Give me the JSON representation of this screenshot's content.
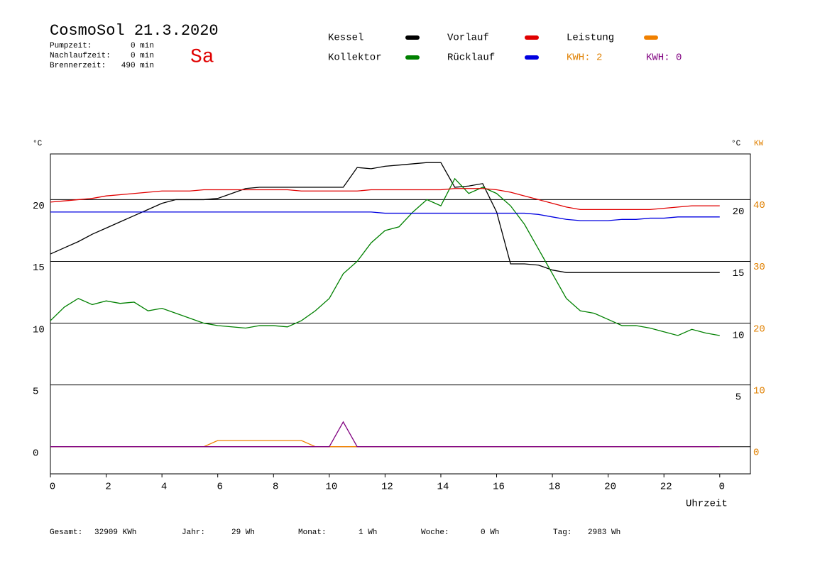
{
  "header": {
    "title": "CosmoSol 21.3.2020",
    "day": "Sa",
    "stats": [
      {
        "label": "Pumpzeit:",
        "value": "0 min"
      },
      {
        "label": "Nachlaufzeit:",
        "value": "0 min"
      },
      {
        "label": "Brennerzeit:",
        "value": "490 min"
      }
    ]
  },
  "footer": [
    {
      "label": "Gesamt:",
      "value": "32909 KWh"
    },
    {
      "label": "Jahr:",
      "value": "29 Wh"
    },
    {
      "label": "Monat:",
      "value": "1 Wh"
    },
    {
      "label": "Woche:",
      "value": "0 Wh"
    },
    {
      "label": "Tag:",
      "value": "2983 Wh"
    }
  ],
  "chart_data": {
    "type": "line",
    "y_unit": "°C",
    "y2_unit_left": "°C",
    "y2_unit": "KW",
    "xlabel": "Uhrzeit",
    "kwh_label": {
      "text": "KWH: 2",
      "color": "#e08000"
    },
    "xlim": [
      0,
      25.1
    ],
    "xticks": [
      0,
      2,
      4,
      6,
      8,
      10,
      12,
      14,
      16,
      18,
      20,
      22,
      {
        "value": 24,
        "label": "0"
      }
    ],
    "ylim": [
      -2.2,
      23.7
    ],
    "yticks": [
      0,
      5,
      10,
      15,
      20
    ],
    "inner_yticks": [
      5,
      10,
      15,
      20
    ],
    "y2lim": [
      -4.4,
      47.4
    ],
    "y2ticks": [
      0,
      10,
      20,
      30,
      40
    ],
    "grid": true,
    "x": [
      0,
      0.5,
      1,
      1.5,
      2,
      2.5,
      3,
      3.5,
      4,
      4.5,
      5,
      5.5,
      6,
      6.5,
      7,
      7.5,
      8,
      8.5,
      9,
      9.5,
      10,
      10.5,
      11,
      11.5,
      12,
      12.5,
      13,
      13.5,
      14,
      14.5,
      15,
      15.5,
      16,
      16.5,
      17,
      17.5,
      18,
      18.5,
      19,
      19.5,
      20,
      20.5,
      21,
      21.5,
      22,
      22.5,
      23,
      23.5,
      24
    ],
    "series": [
      {
        "name": "Kessel",
        "color": "#000000",
        "values": [
          15.6,
          16.1,
          16.6,
          17.2,
          17.7,
          18.2,
          18.7,
          19.2,
          19.7,
          20.0,
          20.0,
          20.0,
          20.1,
          20.5,
          20.9,
          21.0,
          21.0,
          21.0,
          21.0,
          21.0,
          21.0,
          21.0,
          22.6,
          22.5,
          22.7,
          22.8,
          22.9,
          23.0,
          23.0,
          21.0,
          21.1,
          21.3,
          19.0,
          14.8,
          14.8,
          14.7,
          14.3,
          14.1,
          14.1,
          14.1,
          14.1,
          14.1,
          14.1,
          14.1,
          14.1,
          14.1,
          14.1,
          14.1,
          14.1
        ]
      },
      {
        "name": "Kollektor",
        "color": "#008000",
        "values": [
          10.2,
          11.3,
          12.0,
          11.5,
          11.8,
          11.6,
          11.7,
          11.0,
          11.2,
          10.8,
          10.4,
          10.0,
          9.8,
          9.7,
          9.6,
          9.8,
          9.8,
          9.7,
          10.2,
          11.0,
          12.0,
          14.0,
          15.0,
          16.5,
          17.5,
          17.8,
          19.0,
          20.0,
          19.5,
          21.7,
          20.5,
          21.0,
          20.5,
          19.5,
          18.0,
          16.0,
          14.0,
          12.0,
          11.0,
          10.8,
          10.3,
          9.8,
          9.8,
          9.6,
          9.3,
          9.0,
          9.5,
          9.2,
          9.0
        ]
      },
      {
        "name": "Vorlauf",
        "color": "#e00000",
        "values": [
          19.8,
          19.9,
          20.0,
          20.1,
          20.3,
          20.4,
          20.5,
          20.6,
          20.7,
          20.7,
          20.7,
          20.8,
          20.8,
          20.8,
          20.8,
          20.8,
          20.8,
          20.8,
          20.7,
          20.7,
          20.7,
          20.7,
          20.7,
          20.8,
          20.8,
          20.8,
          20.8,
          20.8,
          20.8,
          20.9,
          20.9,
          20.9,
          20.8,
          20.6,
          20.3,
          20.0,
          19.7,
          19.4,
          19.2,
          19.2,
          19.2,
          19.2,
          19.2,
          19.2,
          19.3,
          19.4,
          19.5,
          19.5,
          19.5
        ]
      },
      {
        "name": "Rücklauf",
        "color": "#0000e0",
        "values": [
          19.0,
          19.0,
          19.0,
          19.0,
          19.0,
          19.0,
          19.0,
          19.0,
          19.0,
          19.0,
          19.0,
          19.0,
          19.0,
          19.0,
          19.0,
          19.0,
          19.0,
          19.0,
          19.0,
          19.0,
          19.0,
          19.0,
          19.0,
          19.0,
          18.9,
          18.9,
          18.9,
          18.9,
          18.9,
          18.9,
          18.9,
          18.9,
          18.9,
          18.9,
          18.9,
          18.8,
          18.6,
          18.4,
          18.3,
          18.3,
          18.3,
          18.4,
          18.4,
          18.5,
          18.5,
          18.6,
          18.6,
          18.6,
          18.6
        ]
      },
      {
        "name": "Leistung",
        "color": "#f08000",
        "axis": "y2",
        "values": [
          0,
          0,
          0,
          0,
          0,
          0,
          0,
          0,
          0,
          0,
          0,
          0,
          1,
          1,
          1,
          1,
          1,
          1,
          1,
          0,
          0,
          0,
          0,
          0,
          0,
          0,
          0,
          0,
          0,
          0,
          0,
          0,
          0,
          0,
          0,
          0,
          0,
          0,
          0,
          0,
          0,
          0,
          0,
          0,
          0,
          0,
          0,
          0,
          0
        ]
      },
      {
        "name": "KWH: 0",
        "color": "#800080",
        "axis": "y2",
        "legend_marker": false,
        "values": [
          0,
          0,
          0,
          0,
          0,
          0,
          0,
          0,
          0,
          0,
          0,
          0,
          0,
          0,
          0,
          0,
          0,
          0,
          0,
          0,
          0,
          4,
          0,
          0,
          0,
          0,
          0,
          0,
          0,
          0,
          0,
          0,
          0,
          0,
          0,
          0,
          0,
          0,
          0,
          0,
          0,
          0,
          0,
          0,
          0,
          0,
          0,
          0,
          0
        ]
      }
    ]
  }
}
